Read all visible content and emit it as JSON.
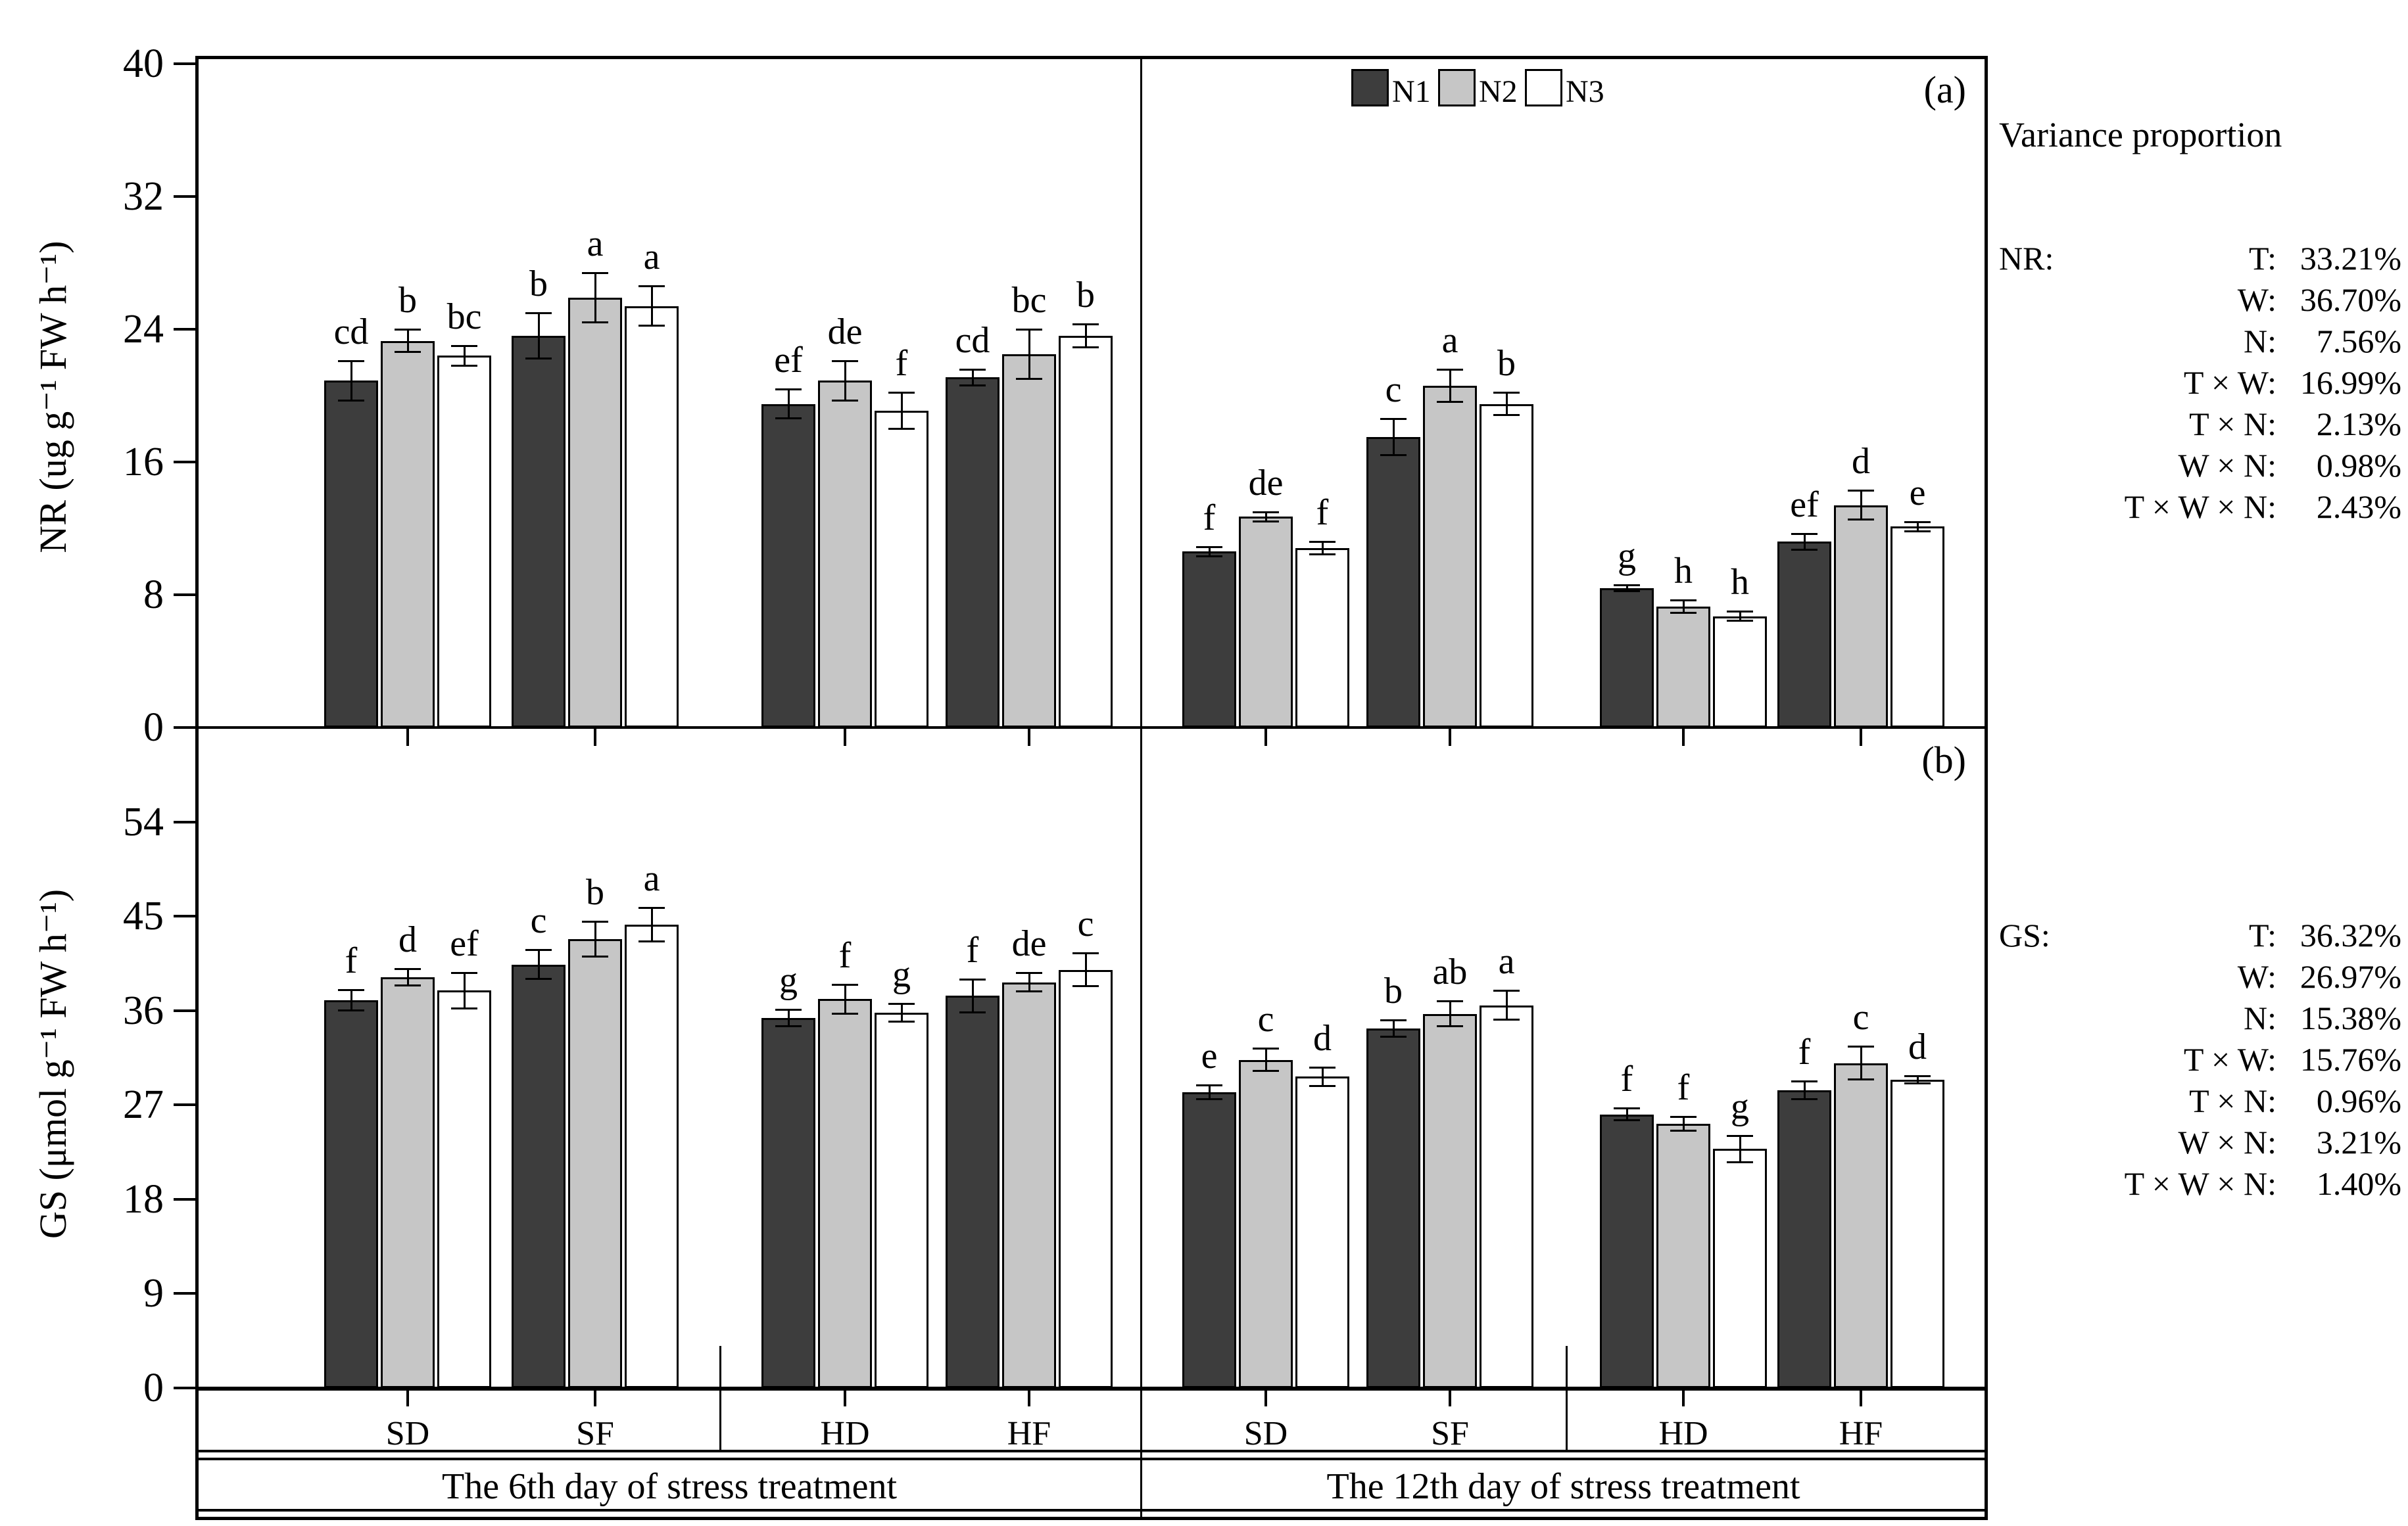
{
  "ui": {
    "legend": {
      "items": [
        {
          "label": "N1",
          "color": "#3d3d3d"
        },
        {
          "label": "N2",
          "color": "#c6c6c6"
        },
        {
          "label": "N3",
          "color": "#ffffff"
        }
      ]
    },
    "panel_a": {
      "tag": "(a)",
      "ylabel": "NR (ug g⁻¹ FW h⁻¹)"
    },
    "panel_b": {
      "tag": "(b)",
      "ylabel": "GS (μmol g⁻¹ FW h⁻¹)"
    },
    "x_axis": {
      "group_labels": [
        "SD",
        "SF",
        "HD",
        "HF"
      ],
      "period_labels": [
        "The 6th day of stress treatment",
        "The 12th day of stress treatment"
      ]
    },
    "variance": {
      "title": "Variance proportion",
      "nr": {
        "prefix": "NR:",
        "rows": [
          {
            "factor": "T:",
            "value": "33.21%"
          },
          {
            "factor": "W:",
            "value": "36.70%"
          },
          {
            "factor": "N:",
            "value": "7.56%"
          },
          {
            "factor": "T × W:",
            "value": "16.99%"
          },
          {
            "factor": "T × N:",
            "value": "2.13%"
          },
          {
            "factor": "W × N:",
            "value": "0.98%"
          },
          {
            "factor": "T × W × N:",
            "value": "2.43%"
          }
        ]
      },
      "gs": {
        "prefix": "GS:",
        "rows": [
          {
            "factor": "T:",
            "value": "36.32%"
          },
          {
            "factor": "W:",
            "value": "26.97%"
          },
          {
            "factor": "N:",
            "value": "15.38%"
          },
          {
            "factor": "T × W:",
            "value": "15.76%"
          },
          {
            "factor": "T × N:",
            "value": "0.96%"
          },
          {
            "factor": "W × N:",
            "value": "3.21%"
          },
          {
            "factor": "T × W × N:",
            "value": "1.40%"
          }
        ]
      }
    }
  },
  "chart_data": [
    {
      "type": "bar",
      "panel": "(a)",
      "title": "Nitrate reductase activity",
      "ylabel": "NR (ug g⁻¹ FW h⁻¹)",
      "ylim": [
        0,
        40
      ],
      "yticks": [
        0,
        8,
        16,
        24,
        32,
        40
      ],
      "grid": false,
      "legend": [
        "N1",
        "N2",
        "N3"
      ],
      "legend_position": "top-right",
      "categories": [
        "SD",
        "SF",
        "HD",
        "HF"
      ],
      "halves": [
        {
          "label": "The 6th day of stress treatment",
          "groups": [
            {
              "name": "SD",
              "values": [
                20.9,
                23.3,
                22.4
              ],
              "errors": [
                1.2,
                0.7,
                0.6
              ],
              "letters": [
                "cd",
                "b",
                "bc"
              ]
            },
            {
              "name": "SF",
              "values": [
                23.6,
                25.9,
                25.4
              ],
              "errors": [
                1.4,
                1.5,
                1.2
              ],
              "letters": [
                "b",
                "a",
                "a"
              ]
            },
            {
              "name": "HD",
              "values": [
                19.5,
                20.9,
                19.1
              ],
              "errors": [
                0.9,
                1.2,
                1.1
              ],
              "letters": [
                "ef",
                "de",
                "f"
              ]
            },
            {
              "name": "HF",
              "values": [
                21.1,
                22.5,
                23.6
              ],
              "errors": [
                0.5,
                1.5,
                0.7
              ],
              "letters": [
                "cd",
                "bc",
                "b"
              ]
            }
          ]
        },
        {
          "label": "The 12th day of stress treatment",
          "groups": [
            {
              "name": "SD",
              "values": [
                10.6,
                12.7,
                10.8
              ],
              "errors": [
                0.3,
                0.3,
                0.4
              ],
              "letters": [
                "f",
                "de",
                "f"
              ]
            },
            {
              "name": "SF",
              "values": [
                17.5,
                20.6,
                19.5
              ],
              "errors": [
                1.1,
                1.0,
                0.7
              ],
              "letters": [
                "c",
                "a",
                "b"
              ]
            },
            {
              "name": "HD",
              "values": [
                8.4,
                7.3,
                6.7
              ],
              "errors": [
                0.2,
                0.4,
                0.3
              ],
              "letters": [
                "g",
                "h",
                "h"
              ]
            },
            {
              "name": "HF",
              "values": [
                11.2,
                13.4,
                12.1
              ],
              "errors": [
                0.5,
                0.9,
                0.3
              ],
              "letters": [
                "ef",
                "d",
                "e"
              ]
            }
          ]
        }
      ]
    },
    {
      "type": "bar",
      "panel": "(b)",
      "title": "Glutamine synthetase activity",
      "ylabel": "GS (μmol g⁻¹ FW h⁻¹)",
      "ylim": [
        0,
        63
      ],
      "yticks": [
        0,
        9,
        18,
        27,
        36,
        45,
        54
      ],
      "grid": false,
      "legend": [
        "N1",
        "N2",
        "N3"
      ],
      "categories": [
        "SD",
        "SF",
        "HD",
        "HF"
      ],
      "halves": [
        {
          "label": "The 6th day of stress treatment",
          "groups": [
            {
              "name": "SD",
              "values": [
                37.0,
                39.2,
                37.9
              ],
              "errors": [
                1.0,
                0.8,
                1.7
              ],
              "letters": [
                "f",
                "d",
                "ef"
              ]
            },
            {
              "name": "SF",
              "values": [
                40.4,
                42.8,
                44.2
              ],
              "errors": [
                1.4,
                1.7,
                1.6
              ],
              "letters": [
                "c",
                "b",
                "a"
              ]
            },
            {
              "name": "HD",
              "values": [
                35.3,
                37.1,
                35.8
              ],
              "errors": [
                0.8,
                1.4,
                0.9
              ],
              "letters": [
                "g",
                "f",
                "g"
              ]
            },
            {
              "name": "HF",
              "values": [
                37.4,
                38.7,
                39.9
              ],
              "errors": [
                1.6,
                0.9,
                1.6
              ],
              "letters": [
                "f",
                "de",
                "c"
              ]
            }
          ]
        },
        {
          "label": "The 12th day of stress treatment",
          "groups": [
            {
              "name": "SD",
              "values": [
                28.2,
                31.3,
                29.7
              ],
              "errors": [
                0.7,
                1.1,
                0.9
              ],
              "letters": [
                "e",
                "c",
                "d"
              ]
            },
            {
              "name": "SF",
              "values": [
                34.3,
                35.7,
                36.5
              ],
              "errors": [
                0.8,
                1.2,
                1.4
              ],
              "letters": [
                "b",
                "ab",
                "a"
              ]
            },
            {
              "name": "HD",
              "values": [
                26.1,
                25.2,
                22.8
              ],
              "errors": [
                0.6,
                0.7,
                1.3
              ],
              "letters": [
                "f",
                "f",
                "g"
              ]
            },
            {
              "name": "HF",
              "values": [
                28.4,
                31.0,
                29.4
              ],
              "errors": [
                0.9,
                1.6,
                0.4
              ],
              "letters": [
                "f",
                "c",
                "d"
              ]
            }
          ]
        }
      ]
    }
  ]
}
